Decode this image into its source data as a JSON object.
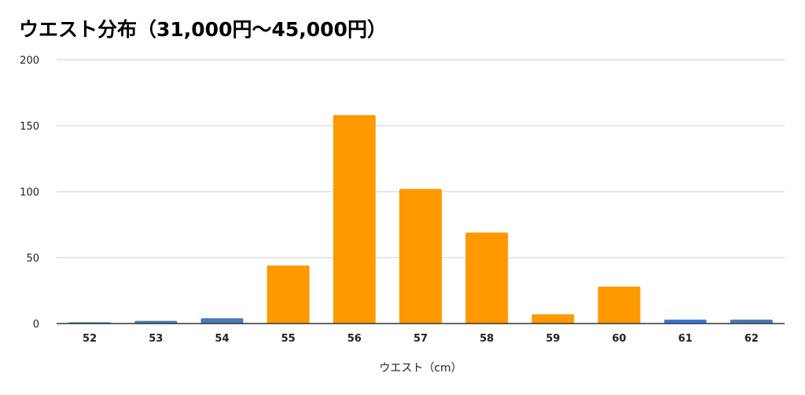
{
  "chart_data": {
    "type": "bar",
    "title": "ウエスト分布（31,000円〜45,000円）",
    "xlabel": "ウエスト（cm）",
    "ylabel": "",
    "categories": [
      "52",
      "53",
      "54",
      "55",
      "56",
      "57",
      "58",
      "59",
      "60",
      "61",
      "62"
    ],
    "values": [
      1,
      2,
      4,
      44,
      158,
      102,
      69,
      7,
      28,
      3,
      3
    ],
    "bar_colors": [
      "#4a7bb7",
      "#4a7bb7",
      "#4a7bb7",
      "#ff9900",
      "#ff9900",
      "#ff9900",
      "#ff9900",
      "#ff9900",
      "#ff9900",
      "#3c78d8",
      "#4a7bb7"
    ],
    "ylim": [
      0,
      200
    ],
    "yticks": [
      0,
      50,
      100,
      150,
      200
    ],
    "grid": true,
    "legend": "none"
  }
}
